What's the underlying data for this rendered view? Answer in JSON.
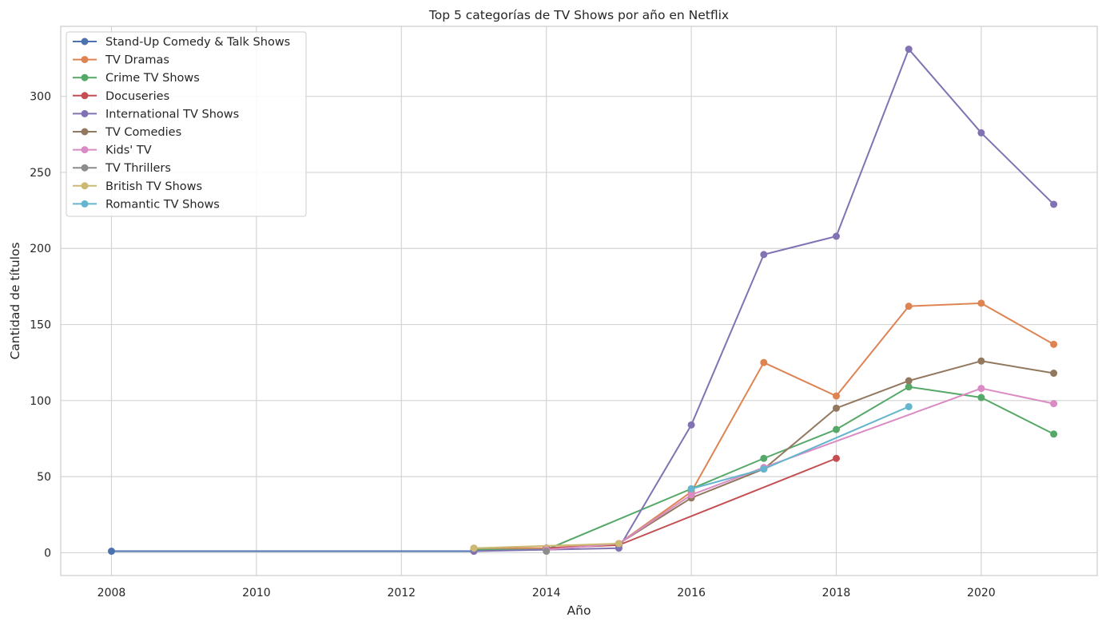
{
  "chart_data": {
    "type": "line",
    "title": "Top 5 categorías de TV Shows por año en Netflix",
    "xlabel": "Año",
    "ylabel": "Cantidad de títulos",
    "xlim": [
      2007.3,
      2021.6
    ],
    "ylim": [
      -15,
      346
    ],
    "xticks": [
      2008,
      2010,
      2012,
      2014,
      2016,
      2018,
      2020
    ],
    "yticks": [
      0,
      50,
      100,
      150,
      200,
      250,
      300
    ],
    "grid": true,
    "legend_position": "top-left",
    "series": [
      {
        "name": "Stand-Up Comedy & Talk Shows",
        "color": "#4c72b0",
        "x": [
          2008,
          2013
        ],
        "y": [
          1,
          1
        ]
      },
      {
        "name": "TV Dramas",
        "color": "#dd8452",
        "x": [
          2013,
          2014,
          2015,
          2016,
          2017,
          2018,
          2019,
          2020,
          2021
        ],
        "y": [
          3,
          3,
          6,
          40,
          125,
          103,
          162,
          164,
          137
        ]
      },
      {
        "name": "Crime TV Shows",
        "color": "#55a868",
        "x": [
          2013,
          2014,
          2016,
          2017,
          2018,
          2019,
          2020,
          2021
        ],
        "y": [
          2,
          2,
          42,
          62,
          81,
          109,
          102,
          78
        ]
      },
      {
        "name": "Docuseries",
        "color": "#c44e52",
        "x": [
          2014,
          2015,
          2018
        ],
        "y": [
          3,
          5,
          62
        ]
      },
      {
        "name": "International TV Shows",
        "color": "#8172b3",
        "x": [
          2013,
          2014,
          2015,
          2016,
          2017,
          2018,
          2019,
          2020,
          2021
        ],
        "y": [
          1,
          2,
          3,
          84,
          196,
          208,
          331,
          276,
          229
        ]
      },
      {
        "name": "TV Comedies",
        "color": "#937860",
        "x": [
          2014,
          2015,
          2016,
          2017,
          2018,
          2019,
          2020,
          2021
        ],
        "y": [
          2,
          6,
          36,
          55,
          95,
          113,
          126,
          118
        ]
      },
      {
        "name": "Kids' TV",
        "color": "#da8bc3",
        "x": [
          2014,
          2015,
          2016,
          2017,
          2020,
          2021
        ],
        "y": [
          2,
          6,
          38,
          56,
          108,
          98
        ]
      },
      {
        "name": "TV Thrillers",
        "color": "#8c8c8c",
        "x": [
          2014
        ],
        "y": [
          1
        ]
      },
      {
        "name": "British TV Shows",
        "color": "#ccb974",
        "x": [
          2013,
          2015
        ],
        "y": [
          3,
          6
        ]
      },
      {
        "name": "Romantic TV Shows",
        "color": "#64b5cd",
        "x": [
          2016,
          2017,
          2019
        ],
        "y": [
          42,
          55,
          96
        ]
      }
    ]
  }
}
